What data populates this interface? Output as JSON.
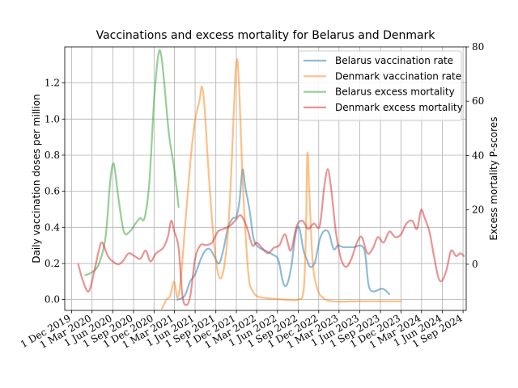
{
  "chart_data": {
    "type": "line",
    "title": "Vaccinations and excess mortality for Belarus and Denmark",
    "ylabel_left": "Daily vaccination doses per million",
    "ylabel_right": "Excess mortality P-scores",
    "xlabel": "",
    "xlim": [
      "2019-11-01",
      "2024-09-15"
    ],
    "ylim_left": [
      -0.06,
      1.4
    ],
    "ylim_right": [
      -17,
      80
    ],
    "yticks_left": [
      "0.0",
      "0.2",
      "0.4",
      "0.6",
      "0.8",
      "1.0",
      "1.2"
    ],
    "yticks_right": [
      "0",
      "20",
      "40",
      "60",
      "80"
    ],
    "xticks": [
      {
        "date": "2019-12-01",
        "label": "1 Dec 2019"
      },
      {
        "date": "2020-03-01",
        "label": "1 Mar 2020"
      },
      {
        "date": "2020-06-01",
        "label": "1 Jun 2020"
      },
      {
        "date": "2020-09-01",
        "label": "1 Sep 2020"
      },
      {
        "date": "2020-12-01",
        "label": "1 Dec 2020"
      },
      {
        "date": "2021-03-01",
        "label": "1 Mar 2021"
      },
      {
        "date": "2021-06-01",
        "label": "1 Jun 2021"
      },
      {
        "date": "2021-09-01",
        "label": "1 Sep 2021"
      },
      {
        "date": "2021-12-01",
        "label": "1 Dec 2021"
      },
      {
        "date": "2022-03-01",
        "label": "1 Mar 2022"
      },
      {
        "date": "2022-06-01",
        "label": "1 Jun 2022"
      },
      {
        "date": "2022-09-01",
        "label": "1 Sep 2022"
      },
      {
        "date": "2022-12-01",
        "label": "1 Dec 2022"
      },
      {
        "date": "2023-03-01",
        "label": "1 Mar 2023"
      },
      {
        "date": "2023-06-01",
        "label": "1 Jun 2023"
      },
      {
        "date": "2023-09-01",
        "label": "1 Sep 2023"
      },
      {
        "date": "2023-12-01",
        "label": "1 Dec 2023"
      },
      {
        "date": "2024-03-01",
        "label": "1 Mar 2024"
      },
      {
        "date": "2024-06-01",
        "label": "1 Jun 2024"
      },
      {
        "date": "2024-09-01",
        "label": "1 Sep 2024"
      }
    ],
    "grid": true,
    "legend_position": "top-right",
    "series": [
      {
        "name": "Belarus vaccination rate",
        "axis": "left",
        "color": "#1f77b4",
        "points": [
          [
            "2021-03-15",
            0.0
          ],
          [
            "2021-04-15",
            0.02
          ],
          [
            "2021-05-10",
            0.1
          ],
          [
            "2021-06-01",
            0.14
          ],
          [
            "2021-06-25",
            0.22
          ],
          [
            "2021-07-15",
            0.27
          ],
          [
            "2021-08-05",
            0.28
          ],
          [
            "2021-08-25",
            0.24
          ],
          [
            "2021-09-15",
            0.2
          ],
          [
            "2021-10-05",
            0.28
          ],
          [
            "2021-10-25",
            0.4
          ],
          [
            "2021-11-15",
            0.45
          ],
          [
            "2021-12-01",
            0.46
          ],
          [
            "2021-12-15",
            0.55
          ],
          [
            "2021-12-28",
            0.72
          ],
          [
            "2022-01-10",
            0.62
          ],
          [
            "2022-01-28",
            0.5
          ],
          [
            "2022-02-15",
            0.34
          ],
          [
            "2022-03-10",
            0.29
          ],
          [
            "2022-04-10",
            0.27
          ],
          [
            "2022-05-10",
            0.25
          ],
          [
            "2022-06-05",
            0.22
          ],
          [
            "2022-06-25",
            0.1
          ],
          [
            "2022-07-12",
            0.08
          ],
          [
            "2022-08-01",
            0.18
          ],
          [
            "2022-08-20",
            0.36
          ],
          [
            "2022-09-05",
            0.4
          ],
          [
            "2022-09-25",
            0.27
          ],
          [
            "2022-10-10",
            0.22
          ],
          [
            "2022-10-25",
            0.18
          ],
          [
            "2022-11-15",
            0.21
          ],
          [
            "2022-12-05",
            0.33
          ],
          [
            "2022-12-25",
            0.38
          ],
          [
            "2023-01-15",
            0.37
          ],
          [
            "2023-02-05",
            0.28
          ],
          [
            "2023-02-25",
            0.3
          ],
          [
            "2023-03-20",
            0.29
          ],
          [
            "2023-05-01",
            0.29
          ],
          [
            "2023-06-20",
            0.28
          ],
          [
            "2023-07-15",
            0.06
          ],
          [
            "2023-09-10",
            0.06
          ],
          [
            "2023-10-10",
            0.03
          ]
        ]
      },
      {
        "name": "Denmark vaccination rate",
        "axis": "left",
        "color": "#ff7f0e",
        "points": [
          [
            "2021-01-05",
            -0.05
          ],
          [
            "2021-01-25",
            0.0
          ],
          [
            "2021-02-10",
            0.02
          ],
          [
            "2021-02-28",
            0.1
          ],
          [
            "2021-03-15",
            0.01
          ],
          [
            "2021-03-30",
            0.12
          ],
          [
            "2021-04-20",
            0.45
          ],
          [
            "2021-05-10",
            0.75
          ],
          [
            "2021-05-30",
            0.98
          ],
          [
            "2021-06-20",
            1.1
          ],
          [
            "2021-07-01",
            1.18
          ],
          [
            "2021-07-12",
            1.08
          ],
          [
            "2021-07-25",
            0.82
          ],
          [
            "2021-08-10",
            0.52
          ],
          [
            "2021-08-25",
            0.3
          ],
          [
            "2021-09-10",
            0.15
          ],
          [
            "2021-09-25",
            0.12
          ],
          [
            "2021-10-10",
            0.2
          ],
          [
            "2021-10-25",
            0.38
          ],
          [
            "2021-11-10",
            0.75
          ],
          [
            "2021-11-25",
            1.2
          ],
          [
            "2021-12-05",
            1.33
          ],
          [
            "2021-12-15",
            1.12
          ],
          [
            "2021-12-28",
            0.68
          ],
          [
            "2022-01-10",
            0.38
          ],
          [
            "2022-01-25",
            0.12
          ],
          [
            "2022-02-10",
            0.05
          ],
          [
            "2022-03-01",
            0.02
          ],
          [
            "2022-04-01",
            0.01
          ],
          [
            "2022-07-01",
            0.0
          ],
          [
            "2022-09-01",
            0.0
          ],
          [
            "2022-09-25",
            0.05
          ],
          [
            "2022-10-05",
            0.35
          ],
          [
            "2022-10-12",
            0.81
          ],
          [
            "2022-10-22",
            0.55
          ],
          [
            "2022-11-05",
            0.2
          ],
          [
            "2022-11-25",
            0.06
          ],
          [
            "2022-12-20",
            0.01
          ],
          [
            "2023-02-01",
            -0.01
          ],
          [
            "2023-06-01",
            -0.01
          ],
          [
            "2023-12-01",
            -0.01
          ]
        ]
      },
      {
        "name": "Belarus excess mortality",
        "axis": "right",
        "color": "#2ca02c",
        "points": [
          [
            "2020-01-31",
            -4
          ],
          [
            "2020-02-29",
            -3
          ],
          [
            "2020-03-31",
            0
          ],
          [
            "2020-04-30",
            10
          ],
          [
            "2020-05-20",
            30
          ],
          [
            "2020-06-05",
            37
          ],
          [
            "2020-06-25",
            25
          ],
          [
            "2020-07-20",
            12
          ],
          [
            "2020-08-15",
            12
          ],
          [
            "2020-09-10",
            15
          ],
          [
            "2020-09-30",
            17
          ],
          [
            "2020-10-20",
            17
          ],
          [
            "2020-11-10",
            30
          ],
          [
            "2020-12-01",
            60
          ],
          [
            "2020-12-20",
            77
          ],
          [
            "2021-01-05",
            75
          ],
          [
            "2021-02-05",
            48
          ],
          [
            "2021-03-01",
            35
          ],
          [
            "2021-03-20",
            21
          ]
        ]
      },
      {
        "name": "Denmark excess mortality",
        "axis": "right",
        "color": "#d62728",
        "points": [
          [
            "2019-12-31",
            0
          ],
          [
            "2020-01-20",
            -6
          ],
          [
            "2020-02-15",
            -10
          ],
          [
            "2020-03-10",
            -3
          ],
          [
            "2020-03-31",
            5
          ],
          [
            "2020-04-15",
            8
          ],
          [
            "2020-05-10",
            3
          ],
          [
            "2020-06-01",
            1
          ],
          [
            "2020-06-25",
            0
          ],
          [
            "2020-07-15",
            1
          ],
          [
            "2020-08-10",
            4
          ],
          [
            "2020-09-05",
            3
          ],
          [
            "2020-10-01",
            2
          ],
          [
            "2020-10-25",
            5
          ],
          [
            "2020-11-15",
            1
          ],
          [
            "2020-12-10",
            4
          ],
          [
            "2021-01-10",
            6
          ],
          [
            "2021-01-31",
            10
          ],
          [
            "2021-02-15",
            16
          ],
          [
            "2021-03-01",
            12
          ],
          [
            "2021-03-20",
            6
          ],
          [
            "2021-04-05",
            -11
          ],
          [
            "2021-04-20",
            -15
          ],
          [
            "2021-05-10",
            -12
          ],
          [
            "2021-06-01",
            2
          ],
          [
            "2021-06-25",
            7
          ],
          [
            "2021-07-20",
            7
          ],
          [
            "2021-08-15",
            8
          ],
          [
            "2021-09-10",
            12
          ],
          [
            "2021-10-05",
            13
          ],
          [
            "2021-11-01",
            14
          ],
          [
            "2021-11-25",
            16
          ],
          [
            "2021-12-20",
            18
          ],
          [
            "2022-01-15",
            14
          ],
          [
            "2022-02-10",
            7
          ],
          [
            "2022-03-01",
            8
          ],
          [
            "2022-03-25",
            6
          ],
          [
            "2022-04-20",
            4
          ],
          [
            "2022-05-15",
            6
          ],
          [
            "2022-06-10",
            7
          ],
          [
            "2022-07-05",
            11
          ],
          [
            "2022-07-30",
            5
          ],
          [
            "2022-08-25",
            14
          ],
          [
            "2022-09-20",
            16
          ],
          [
            "2022-10-15",
            13
          ],
          [
            "2022-11-10",
            15
          ],
          [
            "2022-12-05",
            14
          ],
          [
            "2022-12-25",
            28
          ],
          [
            "2023-01-10",
            35
          ],
          [
            "2023-01-25",
            28
          ],
          [
            "2023-02-15",
            12
          ],
          [
            "2023-03-10",
            2
          ],
          [
            "2023-04-01",
            -1
          ],
          [
            "2023-04-25",
            2
          ],
          [
            "2023-05-20",
            8
          ],
          [
            "2023-06-10",
            10
          ],
          [
            "2023-07-05",
            4
          ],
          [
            "2023-07-30",
            6
          ],
          [
            "2023-08-20",
            10
          ],
          [
            "2023-09-15",
            8
          ],
          [
            "2023-10-10",
            12
          ],
          [
            "2023-11-05",
            10
          ],
          [
            "2023-12-01",
            11
          ],
          [
            "2023-12-25",
            15
          ],
          [
            "2024-01-20",
            16
          ],
          [
            "2024-02-10",
            13
          ],
          [
            "2024-02-28",
            20
          ],
          [
            "2024-03-15",
            17
          ],
          [
            "2024-04-05",
            12
          ],
          [
            "2024-04-25",
            3
          ],
          [
            "2024-05-15",
            -5
          ],
          [
            "2024-06-01",
            -6
          ],
          [
            "2024-06-20",
            -2
          ],
          [
            "2024-07-10",
            5
          ],
          [
            "2024-08-01",
            3
          ],
          [
            "2024-08-20",
            4
          ],
          [
            "2024-09-05",
            3
          ]
        ]
      }
    ]
  }
}
